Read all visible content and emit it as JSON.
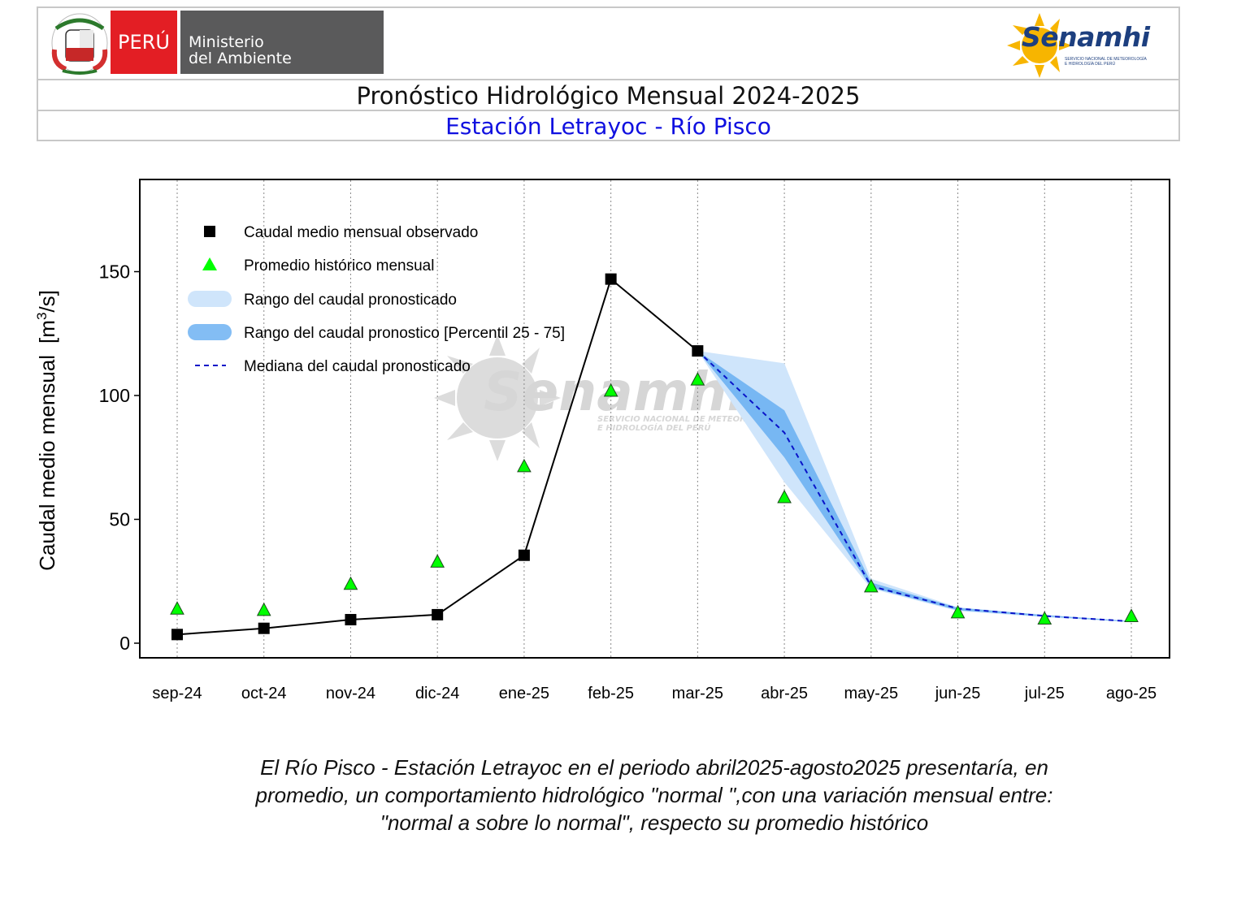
{
  "header": {
    "peru": "PERÚ",
    "ministry_line1": "Ministerio",
    "ministry_line2": "del Ambiente",
    "senamhi": "Senamhi",
    "senamhi_small_line1": "SERVICIO NACIONAL DE METEOROLOGÍA",
    "senamhi_small_line2": "E HIDROLOGÍA DEL PERÚ",
    "title": "Pronóstico Hidrológico Mensual 2024-2025",
    "subtitle": "Estación Letrayoc - Río Pisco"
  },
  "watermark": {
    "text": "Senamhi",
    "line1": "SERVICIO NACIONAL DE METEOROLOGÍA",
    "line2": "E HIDROLOGÍA DEL PERÚ"
  },
  "colors": {
    "observed": "#000000",
    "historical": "#00ff00",
    "range_outer": "#cfe5fb",
    "range_inner": "#5aa7f0",
    "median": "#0a14c8",
    "subtitle": "#1010e0",
    "peru_red": "#e31e24"
  },
  "chart_data": {
    "type": "line",
    "ylabel": "Caudal medio mensual",
    "yunit": "[m3/s]",
    "ylim": [
      0,
      185
    ],
    "yticks": [
      0,
      50,
      100,
      150
    ],
    "grid": "vertical dotted",
    "legend_position": "top-left",
    "categories": [
      "sep-24",
      "oct-24",
      "nov-24",
      "dic-24",
      "ene-25",
      "feb-25",
      "mar-25",
      "abr-25",
      "may-25",
      "jun-25",
      "jul-25",
      "ago-25"
    ],
    "legend": [
      "Caudal medio mensual observado",
      "Promedio histórico mensual",
      "Rango del caudal pronosticado",
      "Rango del caudal pronostico [Percentil 25 - 75]",
      "Mediana del caudal pronosticado"
    ],
    "series": [
      {
        "name": "Caudal medio mensual observado",
        "type": "line+square",
        "values": [
          3.5,
          6,
          9.5,
          11.5,
          35.5,
          147,
          118,
          null,
          null,
          null,
          null,
          null
        ]
      },
      {
        "name": "Promedio histórico mensual",
        "type": "triangle",
        "values": [
          14,
          13.5,
          24,
          33,
          71.5,
          102,
          106.5,
          59,
          23,
          12.5,
          10,
          11
        ]
      },
      {
        "name": "Rango del caudal pronosticado",
        "type": "band",
        "low": [
          null,
          null,
          null,
          null,
          null,
          null,
          118,
          65,
          22,
          13,
          10.5,
          8.5
        ],
        "high": [
          null,
          null,
          null,
          null,
          null,
          null,
          118,
          113,
          26,
          14.5,
          11.5,
          9
        ]
      },
      {
        "name": "Rango del caudal pronostico [Percentil 25 - 75]",
        "type": "band",
        "low": [
          null,
          null,
          null,
          null,
          null,
          null,
          118,
          75,
          22.5,
          13.3,
          10.8,
          8.6
        ],
        "high": [
          null,
          null,
          null,
          null,
          null,
          null,
          118,
          94,
          24.5,
          14.3,
          11.3,
          8.9
        ]
      },
      {
        "name": "Mediana del caudal pronosticado",
        "type": "dashed",
        "values": [
          null,
          null,
          null,
          null,
          null,
          null,
          118,
          85,
          23,
          14,
          11,
          8.8
        ]
      }
    ]
  },
  "caption": {
    "line1": "El Río Pisco - Estación Letrayoc en el periodo abril2025-agosto2025 presentaría, en",
    "line2": "promedio, un comportamiento hidrológico \"normal \",con una variación mensual entre:",
    "line3": "\"normal a sobre lo normal\", respecto su promedio histórico"
  }
}
